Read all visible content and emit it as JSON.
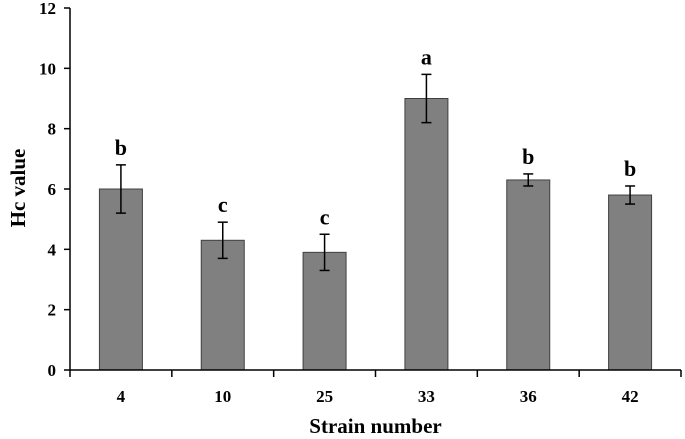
{
  "chart_data": {
    "type": "bar",
    "title": "",
    "xlabel": "Strain number",
    "ylabel": "Hc value",
    "categories": [
      "4",
      "10",
      "25",
      "33",
      "36",
      "42"
    ],
    "values": [
      6.0,
      4.3,
      3.9,
      9.0,
      6.3,
      5.8
    ],
    "errors": [
      0.8,
      0.6,
      0.6,
      0.8,
      0.2,
      0.3
    ],
    "significance_labels": [
      "b",
      "c",
      "c",
      "a",
      "b",
      "b"
    ],
    "ylim": [
      0,
      12
    ],
    "yticks": [
      "0",
      "2",
      "4",
      "6",
      "8",
      "10",
      "12"
    ],
    "grid": false,
    "bar_color": "#808080",
    "bar_edge_color": "#404040"
  }
}
